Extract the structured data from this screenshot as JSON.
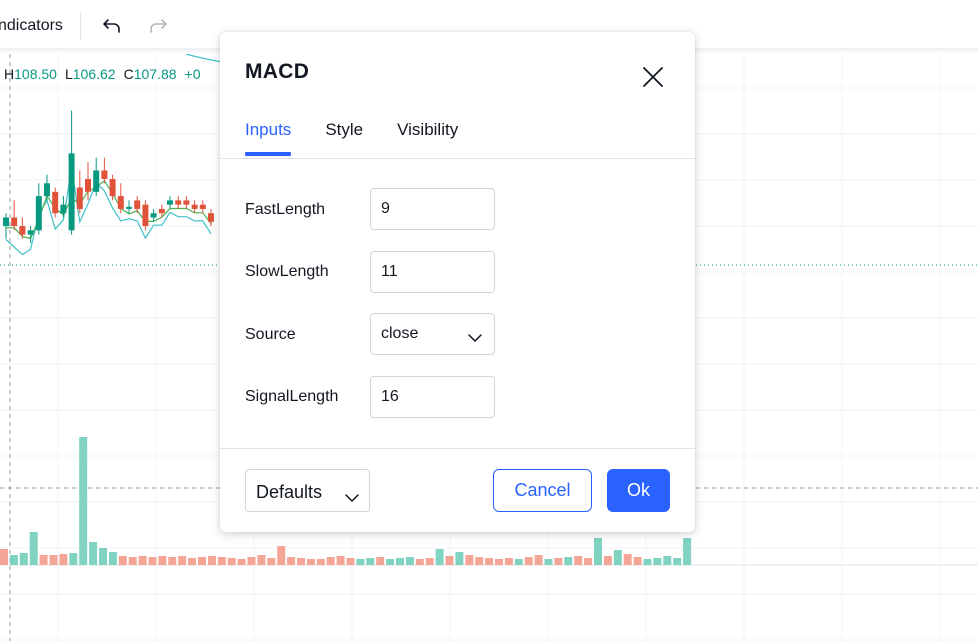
{
  "toolbar": {
    "indicators_label": "ndicators",
    "undo_icon": "undo-arrow-icon",
    "redo_icon": "redo-arrow-icon"
  },
  "legend": {
    "high_label": "H",
    "high_value": "108.50",
    "low_label": "L",
    "low_value": "106.62",
    "close_label": "C",
    "close_value": "107.88",
    "change_value": "+0"
  },
  "colors": {
    "up": "#089981",
    "down": "#f23645",
    "volume_up": "#7fd3c0",
    "volume_down": "#f4a596",
    "ma_teal": "#3fc1c9",
    "ma_green": "#4caf50",
    "accent": "#2962ff"
  },
  "dialog": {
    "title": "MACD",
    "close_icon": "close-x-icon",
    "tabs": [
      {
        "label": "Inputs",
        "active": true
      },
      {
        "label": "Style",
        "active": false
      },
      {
        "label": "Visibility",
        "active": false
      }
    ],
    "inputs": [
      {
        "label": "FastLength",
        "value": "9",
        "type": "number"
      },
      {
        "label": "SlowLength",
        "value": "11",
        "type": "number"
      },
      {
        "label": "Source",
        "value": "close",
        "type": "select"
      },
      {
        "label": "SignalLength",
        "value": "16",
        "type": "number"
      }
    ],
    "defaults_label": "Defaults",
    "cancel_label": "Cancel",
    "ok_label": "Ok"
  },
  "chart": {
    "candles": [
      {
        "o": 107.3,
        "h": 107.6,
        "l": 107.0,
        "c": 107.5
      },
      {
        "o": 107.5,
        "h": 107.9,
        "l": 107.2,
        "c": 107.3
      },
      {
        "o": 107.3,
        "h": 107.5,
        "l": 107.0,
        "c": 107.1
      },
      {
        "o": 107.1,
        "h": 107.3,
        "l": 106.9,
        "c": 107.2
      },
      {
        "o": 107.2,
        "h": 108.3,
        "l": 107.1,
        "c": 108.0
      },
      {
        "o": 108.0,
        "h": 108.5,
        "l": 107.9,
        "c": 108.3
      },
      {
        "o": 108.1,
        "h": 108.2,
        "l": 107.5,
        "c": 107.6
      },
      {
        "o": 107.6,
        "h": 108.0,
        "l": 107.5,
        "c": 107.8
      },
      {
        "o": 107.2,
        "h": 110.0,
        "l": 107.1,
        "c": 109.0
      },
      {
        "o": 108.2,
        "h": 108.6,
        "l": 107.6,
        "c": 107.7
      },
      {
        "o": 108.4,
        "h": 108.8,
        "l": 107.9,
        "c": 108.1
      },
      {
        "o": 108.1,
        "h": 108.9,
        "l": 108.0,
        "c": 108.6
      },
      {
        "o": 108.6,
        "h": 108.9,
        "l": 108.3,
        "c": 108.4
      },
      {
        "o": 108.4,
        "h": 108.5,
        "l": 107.9,
        "c": 108.0
      },
      {
        "o": 108.0,
        "h": 108.3,
        "l": 107.6,
        "c": 107.7
      },
      {
        "o": 107.7,
        "h": 107.9,
        "l": 107.6,
        "c": 107.75
      },
      {
        "o": 107.9,
        "h": 108.0,
        "l": 107.6,
        "c": 107.7
      },
      {
        "o": 107.8,
        "h": 107.9,
        "l": 107.2,
        "c": 107.3
      },
      {
        "o": 107.5,
        "h": 107.7,
        "l": 107.4,
        "c": 107.6
      },
      {
        "o": 107.7,
        "h": 107.8,
        "l": 107.5,
        "c": 107.6
      },
      {
        "o": 107.8,
        "h": 108.0,
        "l": 107.7,
        "c": 107.9
      },
      {
        "o": 107.9,
        "h": 108.0,
        "l": 107.7,
        "c": 107.8
      },
      {
        "o": 107.9,
        "h": 108.0,
        "l": 107.7,
        "c": 107.8
      },
      {
        "o": 107.8,
        "h": 107.9,
        "l": 107.6,
        "c": 107.7
      },
      {
        "o": 107.8,
        "h": 107.9,
        "l": 107.6,
        "c": 107.7
      },
      {
        "o": 107.6,
        "h": 107.7,
        "l": 107.3,
        "c": 107.4
      }
    ],
    "volumes": [
      {
        "v": 16,
        "up": false
      },
      {
        "v": 10,
        "up": true
      },
      {
        "v": 12,
        "up": true
      },
      {
        "v": 33,
        "up": true
      },
      {
        "v": 10,
        "up": false
      },
      {
        "v": 10,
        "up": false
      },
      {
        "v": 11,
        "up": false
      },
      {
        "v": 12,
        "up": true
      },
      {
        "v": 128,
        "up": true
      },
      {
        "v": 23,
        "up": true
      },
      {
        "v": 17,
        "up": true
      },
      {
        "v": 13,
        "up": true
      },
      {
        "v": 9,
        "up": false
      },
      {
        "v": 8,
        "up": false
      },
      {
        "v": 9,
        "up": false
      },
      {
        "v": 8,
        "up": false
      },
      {
        "v": 9,
        "up": false
      },
      {
        "v": 8,
        "up": false
      },
      {
        "v": 9,
        "up": false
      },
      {
        "v": 7,
        "up": false
      },
      {
        "v": 8,
        "up": false
      },
      {
        "v": 9,
        "up": false
      },
      {
        "v": 8,
        "up": false
      },
      {
        "v": 7,
        "up": false
      },
      {
        "v": 6,
        "up": false
      },
      {
        "v": 8,
        "up": false
      },
      {
        "v": 10,
        "up": false
      },
      {
        "v": 7,
        "up": false
      },
      {
        "v": 19,
        "up": false
      },
      {
        "v": 8,
        "up": false
      },
      {
        "v": 7,
        "up": false
      },
      {
        "v": 6,
        "up": false
      },
      {
        "v": 6,
        "up": false
      },
      {
        "v": 8,
        "up": false
      },
      {
        "v": 9,
        "up": false
      },
      {
        "v": 7,
        "up": false
      },
      {
        "v": 6,
        "up": true
      },
      {
        "v": 7,
        "up": true
      },
      {
        "v": 8,
        "up": false
      },
      {
        "v": 6,
        "up": true
      },
      {
        "v": 7,
        "up": true
      },
      {
        "v": 8,
        "up": true
      },
      {
        "v": 6,
        "up": false
      },
      {
        "v": 7,
        "up": false
      },
      {
        "v": 16,
        "up": true
      },
      {
        "v": 9,
        "up": false
      },
      {
        "v": 13,
        "up": true
      },
      {
        "v": 10,
        "up": false
      },
      {
        "v": 8,
        "up": false
      },
      {
        "v": 7,
        "up": false
      },
      {
        "v": 6,
        "up": false
      },
      {
        "v": 7,
        "up": false
      },
      {
        "v": 6,
        "up": true
      },
      {
        "v": 8,
        "up": false
      },
      {
        "v": 10,
        "up": false
      },
      {
        "v": 6,
        "up": true
      },
      {
        "v": 7,
        "up": false
      },
      {
        "v": 8,
        "up": true
      },
      {
        "v": 9,
        "up": false
      },
      {
        "v": 7,
        "up": false
      },
      {
        "v": 27,
        "up": true
      },
      {
        "v": 9,
        "up": false
      },
      {
        "v": 15,
        "up": true
      },
      {
        "v": 11,
        "up": false
      },
      {
        "v": 8,
        "up": false
      },
      {
        "v": 6,
        "up": true
      },
      {
        "v": 7,
        "up": true
      },
      {
        "v": 9,
        "up": true
      },
      {
        "v": 7,
        "up": true
      },
      {
        "v": 27,
        "up": true
      }
    ]
  }
}
